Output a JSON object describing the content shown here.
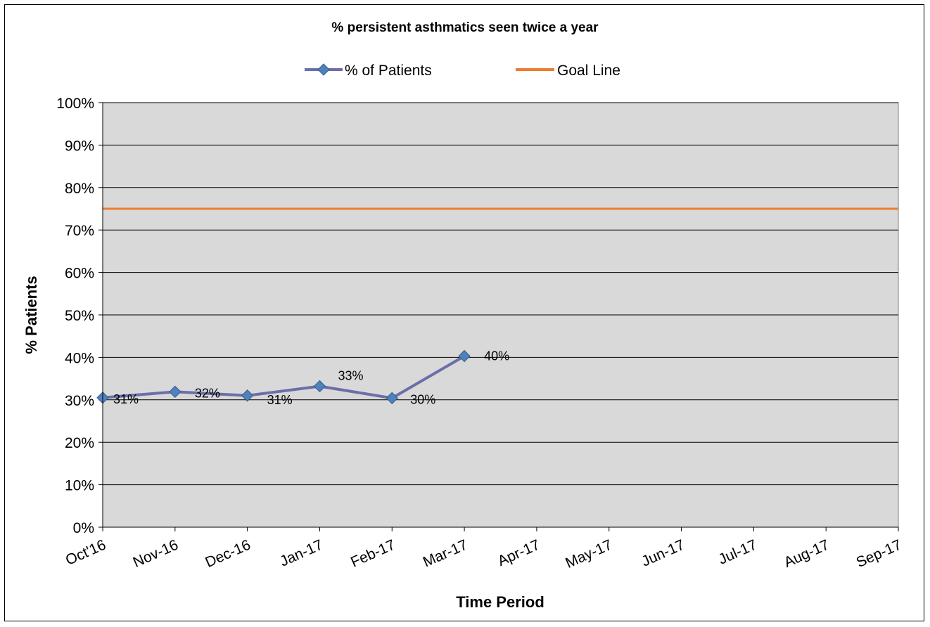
{
  "chart_data": {
    "type": "line",
    "title": "% persistent asthmatics seen twice a year",
    "xlabel": "Time Period",
    "ylabel": "% Patients",
    "categories": [
      "Oct'16",
      "Nov-16",
      "Dec-16",
      "Jan-17",
      "Feb-17",
      "Mar-17",
      "Apr-17",
      "May-17",
      "Jun-17",
      "Jul-17",
      "Aug-17",
      "Sep-17"
    ],
    "ylim": [
      0,
      100
    ],
    "yticks": [
      "0%",
      "10%",
      "20%",
      "30%",
      "40%",
      "50%",
      "60%",
      "70%",
      "80%",
      "90%",
      "100%"
    ],
    "grid": true,
    "legend": "top-center",
    "plot_background": "#d9d9d9",
    "series": [
      {
        "name": "% of Patients",
        "color": "#6b6fa8",
        "marker_color": "#4f81bd",
        "marker": "diamond",
        "values": [
          30.5,
          31.9,
          31.0,
          33.2,
          30.4,
          40.3,
          null,
          null,
          null,
          null,
          null,
          null
        ],
        "labels": [
          "31%",
          "32%",
          "31%",
          "33%",
          "30%",
          "40%"
        ]
      },
      {
        "name": "Goal Line",
        "color": "#ed7d31",
        "values": [
          75,
          75,
          75,
          75,
          75,
          75,
          75,
          75,
          75,
          75,
          75,
          75
        ]
      }
    ]
  }
}
